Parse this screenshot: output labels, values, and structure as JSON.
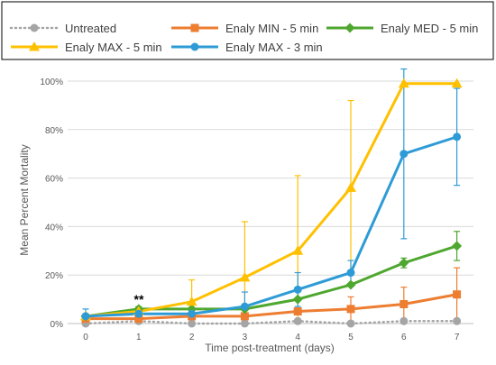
{
  "chart_data": {
    "type": "line",
    "xlabel": "Time post-treatment (days)",
    "ylabel": "Mean Percent Mortality",
    "x": [
      0,
      1,
      2,
      3,
      4,
      5,
      6,
      7
    ],
    "xlim": [
      0,
      7
    ],
    "ylim": [
      0,
      100
    ],
    "y_ticks": [
      0,
      20,
      40,
      60,
      80,
      100
    ],
    "y_tick_labels": [
      "0%",
      "20%",
      "40%",
      "60%",
      "80%",
      "100%"
    ],
    "grid": "horizontal",
    "legend_position": "top",
    "annotations": [
      {
        "text": "**",
        "x": 1
      }
    ],
    "series": [
      {
        "name": "Untreated",
        "color": "#A5A5A5",
        "marker": "circle",
        "line_style": "dotted",
        "values": [
          0,
          1,
          0,
          0,
          1,
          0,
          1,
          1
        ],
        "error": [
          0,
          0,
          0,
          0,
          0,
          0,
          0,
          0
        ]
      },
      {
        "name": "Enaly MIN - 5 min",
        "color": "#ED7D31",
        "marker": "square",
        "line_style": "solid",
        "values": [
          2,
          2,
          3,
          3,
          5,
          6,
          8,
          12
        ],
        "error": [
          0,
          0,
          0,
          0,
          1,
          5,
          7,
          11
        ]
      },
      {
        "name": "Enaly MED - 5 min",
        "color": "#4EA72E",
        "marker": "diamond",
        "line_style": "solid",
        "values": [
          3,
          6,
          6,
          6,
          10,
          16,
          25,
          32
        ],
        "error": [
          1,
          1,
          0,
          0,
          0,
          0,
          2,
          6
        ]
      },
      {
        "name": "Enaly MAX - 5 min",
        "color": "#FFC000",
        "marker": "triangle",
        "line_style": "solid",
        "values": [
          3,
          5,
          9,
          19,
          30,
          56,
          99,
          99
        ],
        "error": [
          0,
          0,
          9,
          23,
          31,
          36,
          0,
          0
        ]
      },
      {
        "name": "Enaly MAX - 3 min",
        "color": "#2E9BD6",
        "marker": "circle",
        "line_style": "solid",
        "values": [
          3,
          4,
          4,
          7,
          14,
          21,
          70,
          77
        ],
        "error": [
          3,
          0,
          1,
          6,
          7,
          5,
          35,
          20
        ]
      }
    ]
  }
}
